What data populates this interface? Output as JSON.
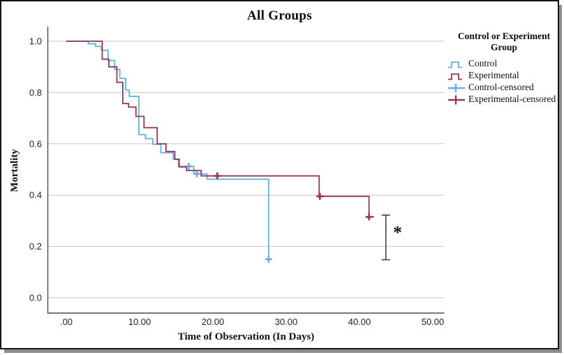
{
  "figure": {
    "title": "All Groups",
    "x_axis_title": "Time of Observation (In Days)",
    "y_axis_title": "Mortality"
  },
  "legend": {
    "title": "Control or Experiment Group",
    "items": [
      {
        "label": "Control",
        "series": "control",
        "symbol": "step"
      },
      {
        "label": "Experimental",
        "series": "experimental",
        "symbol": "step"
      },
      {
        "label": "Control-censored",
        "series": "control",
        "symbol": "plus"
      },
      {
        "label": "Experimental-censored",
        "series": "experimental",
        "symbol": "plus"
      }
    ]
  },
  "colors": {
    "control": "#63B1E0",
    "experimental": "#9B3454",
    "grid": "#C7C7C7",
    "axis": "#4D4D4D",
    "tick_text": "#1F1F1F",
    "error_bar": "#444444"
  },
  "chart_data": {
    "type": "line",
    "subtype": "kaplan-meier-step-survival",
    "title": "All Groups",
    "xlabel": "Time of Observation (In Days)",
    "ylabel": "Mortality",
    "xlim": [
      0,
      50
    ],
    "ylim": [
      0.0,
      1.0
    ],
    "grid": "horizontal-only",
    "legend_position": "right",
    "x_ticks": {
      "values": [
        0,
        10,
        20,
        30,
        40,
        50
      ],
      "labels": [
        ".00",
        "10.00",
        "20.00",
        "30.00",
        "40.00",
        "50.00"
      ]
    },
    "y_ticks": {
      "values": [
        0.0,
        0.2,
        0.4,
        0.6,
        0.8,
        1.0
      ],
      "labels": [
        "0.0",
        "0.2",
        "0.4",
        "0.6",
        "0.8",
        "1.0"
      ]
    },
    "series": [
      {
        "name": "Control",
        "key": "control",
        "step_points": [
          [
            0,
            1.0
          ],
          [
            3.0,
            0.99
          ],
          [
            4.0,
            0.98
          ],
          [
            4.8,
            0.965
          ],
          [
            5.7,
            0.925
          ],
          [
            6.6,
            0.89
          ],
          [
            7.3,
            0.855
          ],
          [
            8.1,
            0.81
          ],
          [
            8.6,
            0.785
          ],
          [
            9.9,
            0.636
          ],
          [
            10.8,
            0.62
          ],
          [
            11.8,
            0.598
          ],
          [
            12.9,
            0.565
          ],
          [
            14.6,
            0.54
          ],
          [
            15.3,
            0.512
          ],
          [
            17.4,
            0.483
          ],
          [
            19.2,
            0.462
          ],
          [
            27.6,
            0.15
          ]
        ],
        "end_x": 27.6,
        "censored_points": [
          [
            16.7,
            0.512
          ],
          [
            17.8,
            0.483
          ],
          [
            27.6,
            0.15
          ]
        ]
      },
      {
        "name": "Experimental",
        "key": "experimental",
        "step_points": [
          [
            0,
            1.0
          ],
          [
            4.9,
            0.93
          ],
          [
            5.8,
            0.9
          ],
          [
            6.9,
            0.84
          ],
          [
            7.7,
            0.757
          ],
          [
            8.5,
            0.743
          ],
          [
            9.5,
            0.707
          ],
          [
            10.6,
            0.663
          ],
          [
            12.4,
            0.6
          ],
          [
            13.6,
            0.57
          ],
          [
            14.8,
            0.54
          ],
          [
            15.4,
            0.51
          ],
          [
            16.4,
            0.496
          ],
          [
            18.4,
            0.475
          ],
          [
            34.5,
            0.395
          ],
          [
            41.3,
            0.315
          ]
        ],
        "end_x": 42.0,
        "censored_points": [
          [
            20.6,
            0.475
          ],
          [
            34.6,
            0.395
          ],
          [
            41.3,
            0.315
          ]
        ]
      }
    ],
    "annotations": {
      "error_bar": {
        "x": 43.6,
        "top": 0.322,
        "bottom": 0.148
      },
      "significance_marker": {
        "x": 45.2,
        "y": 0.258,
        "text": "*"
      }
    }
  }
}
